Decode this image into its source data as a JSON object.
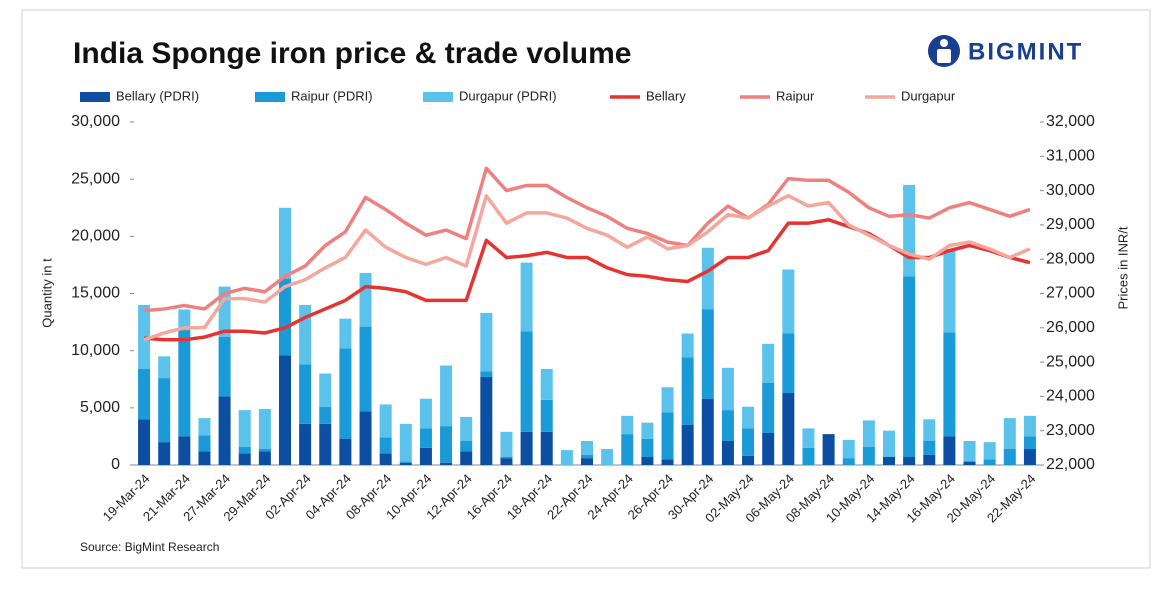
{
  "chart_data": {
    "type": "bar",
    "title": "India Sponge iron price & trade volume",
    "logo_text": "BIGMINT",
    "source": "Source: BigMint Research",
    "y_label": "Quantity in t",
    "y2_label": "Prices in INR/t",
    "categories": [
      "19-Mar-24",
      null,
      "21-Mar-24",
      null,
      "27-Mar-24",
      null,
      "29-Mar-24",
      null,
      "02-Apr-24",
      null,
      "04-Apr-24",
      null,
      "08-Apr-24",
      null,
      "10-Apr-24",
      null,
      "12-Apr-24",
      null,
      "16-Apr-24",
      null,
      "18-Apr-24",
      null,
      "22-Apr-24",
      null,
      "24-Apr-24",
      null,
      "26-Apr-24",
      null,
      "30-Apr-24",
      null,
      "02-May-24",
      null,
      "06-May-24",
      null,
      "08-May-24",
      null,
      "10-May-24",
      null,
      "14-May-24",
      null,
      "16-May-24",
      null,
      "20-May-24",
      null,
      "22-May-24"
    ],
    "ylim": [
      0,
      30000
    ],
    "yticks": [
      0,
      {
        "value": 5000,
        "label": "5,000"
      },
      {
        "value": 10000,
        "label": "10,000"
      },
      {
        "value": 15000,
        "label": "15,000"
      },
      {
        "value": 20000,
        "label": "20,000"
      },
      {
        "value": 25000,
        "label": "25,000"
      },
      {
        "value": 30000,
        "label": "30,000"
      }
    ],
    "y2lim": [
      22000,
      32000
    ],
    "y2ticks": [
      {
        "value": 22000,
        "label": "22,000"
      },
      {
        "value": 23000,
        "label": "23,000"
      },
      {
        "value": 24000,
        "label": "24,000"
      },
      {
        "value": 25000,
        "label": "25,000"
      },
      {
        "value": 26000,
        "label": "26,000"
      },
      {
        "value": 27000,
        "label": "27,000"
      },
      {
        "value": 28000,
        "label": "28,000"
      },
      {
        "value": 29000,
        "label": "29,000"
      },
      {
        "value": 30000,
        "label": "30,000"
      },
      {
        "value": 31000,
        "label": "31,000"
      },
      {
        "value": 32000,
        "label": "32,000"
      }
    ],
    "series": [
      {
        "name": "Bellary (PDRI)",
        "type": "bar",
        "color": "#0b4ea2",
        "values": [
          4000,
          2000,
          2500,
          1200,
          6000,
          1000,
          1200,
          9600,
          3600,
          3600,
          2300,
          4700,
          1000,
          200,
          1500,
          200,
          1200,
          7700,
          600,
          2900,
          2900,
          0,
          600,
          0,
          0,
          700,
          500,
          3500,
          5800,
          2100,
          800,
          2800,
          6300,
          0,
          2700,
          0,
          0,
          700,
          700,
          900,
          2500,
          300,
          0,
          0,
          1400
        ]
      },
      {
        "name": "Raipur (PDRI)",
        "type": "bar",
        "color": "#1a9ad6",
        "values": [
          4400,
          5600,
          9300,
          1400,
          5200,
          600,
          200,
          6700,
          5200,
          1500,
          7900,
          7400,
          1400,
          100,
          1700,
          3200,
          900,
          500,
          100,
          8800,
          2800,
          0,
          300,
          0,
          2700,
          1600,
          4100,
          5900,
          7800,
          2700,
          2400,
          4400,
          5200,
          1500,
          0,
          600,
          1600,
          0,
          15800,
          1200,
          9100,
          0,
          500,
          1400,
          1100
        ]
      },
      {
        "name": "Durgapur (PDRI)",
        "type": "bar",
        "color": "#5bc2ec",
        "values": [
          5600,
          1900,
          1800,
          1500,
          4400,
          3200,
          3500,
          6200,
          5200,
          2900,
          2600,
          4700,
          2900,
          3300,
          2600,
          5300,
          2100,
          5100,
          2200,
          6000,
          2700,
          1300,
          1200,
          1400,
          1600,
          1400,
          2200,
          2100,
          5400,
          3700,
          1900,
          3400,
          5600,
          1700,
          0,
          1600,
          2300,
          2300,
          8000,
          1900,
          7300,
          1800,
          1500,
          2700,
          1800
        ]
      },
      {
        "name": "Bellary",
        "type": "line",
        "axis": "y2",
        "color": "#e63331",
        "values": [
          25700,
          25650,
          25650,
          25730,
          25900,
          25900,
          25850,
          26000,
          26300,
          26550,
          26800,
          27200,
          27150,
          27050,
          26800,
          26800,
          26800,
          28550,
          28050,
          28100,
          28200,
          28050,
          28050,
          27750,
          27550,
          27500,
          27400,
          27350,
          27650,
          28050,
          28050,
          28250,
          29050,
          29050,
          29150,
          28950,
          28750,
          28400,
          28050,
          28050,
          28250,
          28400,
          28250,
          28050,
          27900
        ]
      },
      {
        "name": "Raipur",
        "type": "line",
        "axis": "y2",
        "color": "#f08080",
        "values": [
          26500,
          26550,
          26650,
          26550,
          27000,
          27150,
          27050,
          27500,
          27800,
          28400,
          28800,
          29800,
          29450,
          29050,
          28700,
          28850,
          28600,
          30650,
          30000,
          30150,
          30150,
          29800,
          29500,
          29250,
          28900,
          28750,
          28500,
          28400,
          29050,
          29550,
          29200,
          29600,
          30350,
          30300,
          30300,
          29950,
          29500,
          29250,
          29300,
          29200,
          29500,
          29650,
          29450,
          29250,
          29450
        ]
      },
      {
        "name": "Durgapur",
        "type": "line",
        "axis": "y2",
        "color": "#f4a79c",
        "values": [
          25650,
          25850,
          26000,
          26000,
          26850,
          26850,
          26750,
          27200,
          27400,
          27750,
          28050,
          28850,
          28350,
          28050,
          27850,
          28050,
          27800,
          29850,
          29050,
          29350,
          29350,
          29200,
          28900,
          28700,
          28350,
          28650,
          28300,
          28400,
          28800,
          29300,
          29200,
          29550,
          29850,
          29550,
          29650,
          29000,
          28700,
          28400,
          28150,
          28000,
          28400,
          28500,
          28300,
          28050,
          28300
        ]
      }
    ]
  }
}
